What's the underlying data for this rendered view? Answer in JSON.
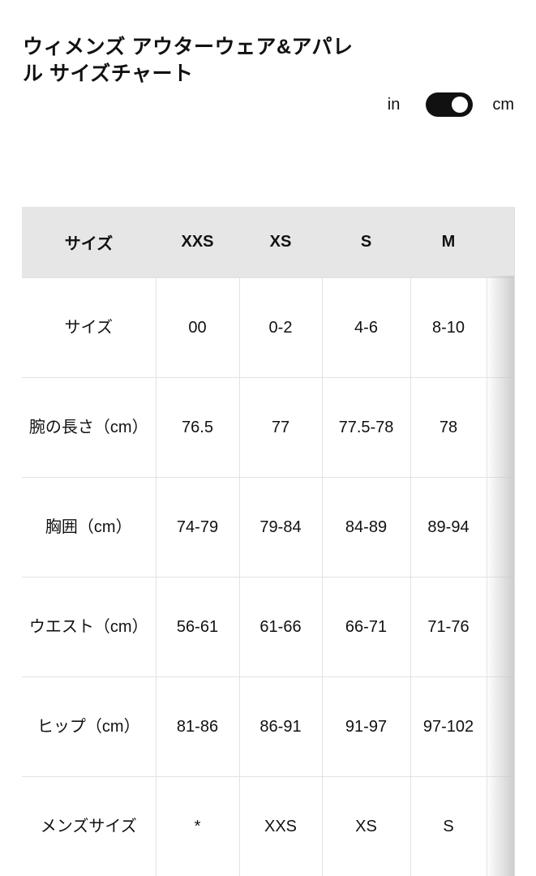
{
  "title": "ウィメンズ アウターウェア&アパレル サイズチャート",
  "units": {
    "left": "in",
    "right": "cm",
    "selected": "cm"
  },
  "table": {
    "headers": [
      "サイズ",
      "XXS",
      "XS",
      "S",
      "M",
      ""
    ],
    "rows": [
      [
        "サイズ",
        "00",
        "0-2",
        "4-6",
        "8-10",
        ""
      ],
      [
        "腕の長さ（cm）",
        "76.5",
        "77",
        "77.5-78",
        "78",
        ""
      ],
      [
        "胸囲（cm）",
        "74-79",
        "79-84",
        "84-89",
        "89-94",
        ""
      ],
      [
        "ウエスト（cm）",
        "56-61",
        "61-66",
        "66-71",
        "71-76",
        ""
      ],
      [
        "ヒップ（cm）",
        "81-86",
        "86-91",
        "91-97",
        "97-102",
        ""
      ],
      [
        "メンズサイズ",
        "*",
        "XXS",
        "XS",
        "S",
        ""
      ]
    ]
  }
}
